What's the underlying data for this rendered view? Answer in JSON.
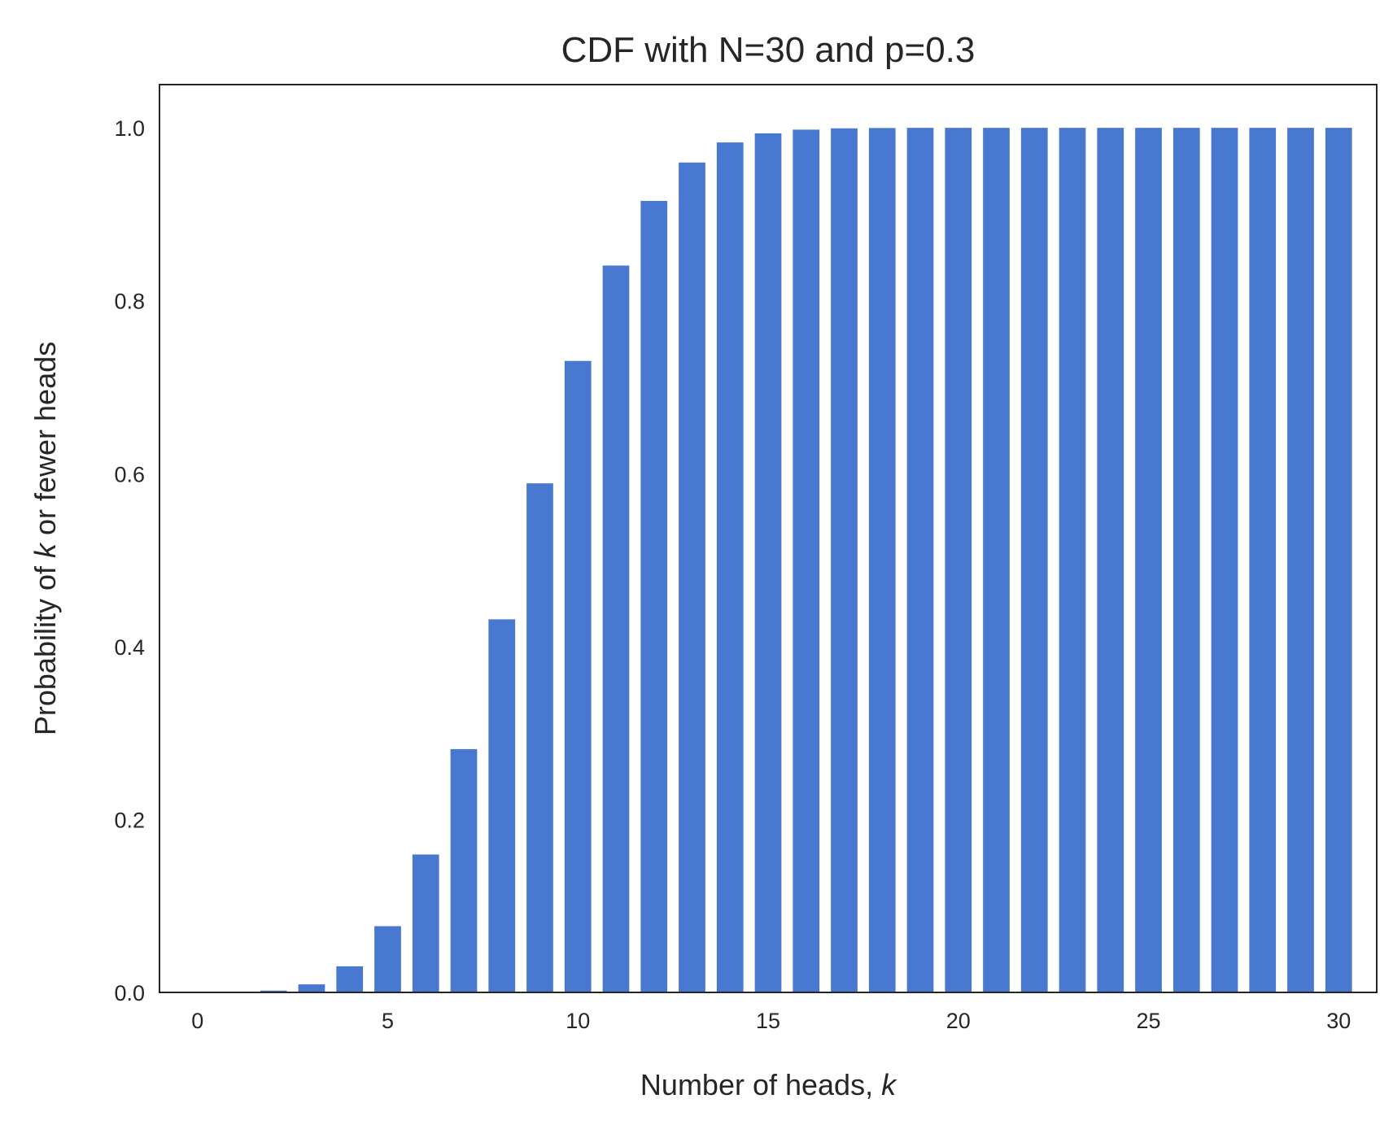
{
  "chart_data": {
    "type": "bar",
    "title": "CDF with N=30 and p=0.3",
    "xlabel": {
      "prefix": "Number of heads, ",
      "var": "k"
    },
    "ylabel": {
      "prefix": "Probability of ",
      "var": "k",
      "suffix": " or fewer heads"
    },
    "x": [
      0,
      1,
      2,
      3,
      4,
      5,
      6,
      7,
      8,
      9,
      10,
      11,
      12,
      13,
      14,
      15,
      16,
      17,
      18,
      19,
      20,
      21,
      22,
      23,
      24,
      25,
      26,
      27,
      28,
      29,
      30
    ],
    "values": [
      0.0,
      0.0003,
      0.0021,
      0.0093,
      0.0302,
      0.0766,
      0.1595,
      0.2814,
      0.4315,
      0.5888,
      0.7304,
      0.8407,
      0.9155,
      0.9599,
      0.9831,
      0.9936,
      0.9979,
      0.9994,
      0.9998,
      1.0,
      1.0,
      1.0,
      1.0,
      1.0,
      1.0,
      1.0,
      1.0,
      1.0,
      1.0,
      1.0,
      1.0
    ],
    "xlim": [
      -1,
      31
    ],
    "ylim": [
      0,
      1.05
    ],
    "xticks": [
      0,
      5,
      10,
      15,
      20,
      25,
      30
    ],
    "xtick_labels": [
      "0",
      "5",
      "10",
      "15",
      "20",
      "25",
      "30"
    ],
    "yticks": [
      0.0,
      0.2,
      0.4,
      0.6,
      0.8,
      1.0
    ],
    "ytick_labels": [
      "0.0",
      "0.2",
      "0.4",
      "0.6",
      "0.8",
      "1.0"
    ],
    "grid": false,
    "bar_color": "#4878cf",
    "axis_color": "#262626"
  }
}
